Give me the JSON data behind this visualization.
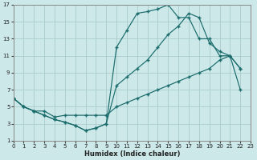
{
  "xlabel": "Humidex (Indice chaleur)",
  "bg_color": "#cce8e8",
  "grid_color": "#aacccc",
  "line_color": "#1a6b6b",
  "xlim": [
    0,
    23
  ],
  "ylim": [
    1,
    17
  ],
  "xticks": [
    0,
    1,
    2,
    3,
    4,
    5,
    6,
    7,
    8,
    9,
    10,
    11,
    12,
    13,
    14,
    15,
    16,
    17,
    18,
    19,
    20,
    21,
    22,
    23
  ],
  "yticks": [
    1,
    3,
    5,
    7,
    9,
    11,
    13,
    15,
    17
  ],
  "curve_top_x": [
    0,
    1,
    2,
    3,
    4,
    5,
    6,
    7,
    8,
    9,
    10,
    11,
    12,
    13,
    14,
    15,
    16,
    17,
    18,
    19,
    20,
    21,
    22
  ],
  "curve_top_y": [
    6,
    5,
    4.5,
    4,
    3.5,
    3.2,
    2.8,
    2.2,
    2.5,
    3.0,
    12,
    14,
    16,
    16.2,
    16.5,
    17,
    15.5,
    15.5,
    13,
    13,
    11,
    11,
    9.5
  ],
  "curve_mid_x": [
    0,
    1,
    2,
    3,
    4,
    5,
    6,
    7,
    8,
    9,
    10,
    11,
    12,
    13,
    14,
    15,
    16,
    17,
    18,
    19,
    20,
    21,
    22
  ],
  "curve_mid_y": [
    6,
    5,
    4.5,
    4,
    3.5,
    3.2,
    2.8,
    2.2,
    2.5,
    3.0,
    7.5,
    8.5,
    9.5,
    10.5,
    12,
    13.5,
    14.5,
    16,
    15.5,
    12.5,
    11.5,
    11,
    9.5
  ],
  "curve_bot_x": [
    0,
    1,
    2,
    3,
    4,
    5,
    6,
    7,
    8,
    9,
    10,
    11,
    12,
    13,
    14,
    15,
    16,
    17,
    18,
    19,
    20,
    21,
    22
  ],
  "curve_bot_y": [
    6,
    5,
    4.5,
    4.5,
    3.8,
    4,
    4,
    4,
    4,
    4,
    5,
    5.5,
    6,
    6.5,
    7,
    7.5,
    8,
    8.5,
    9,
    9.5,
    10.5,
    11,
    7
  ]
}
